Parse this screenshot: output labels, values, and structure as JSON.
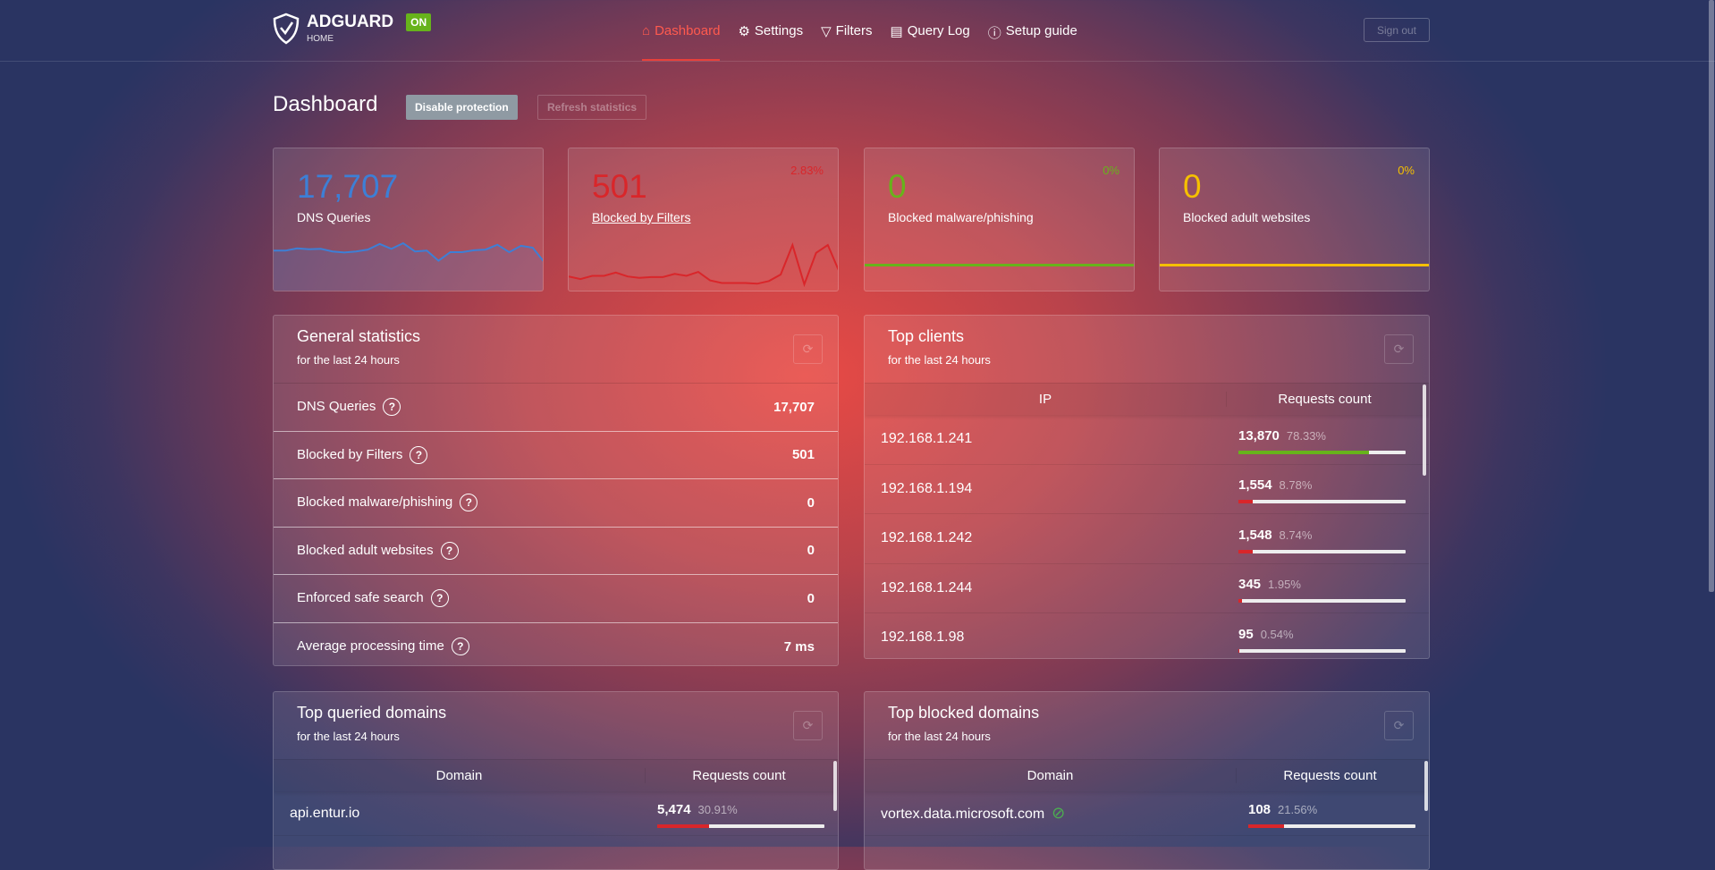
{
  "header": {
    "brand": "ADGUARD",
    "brand_sub": "HOME",
    "status": "ON",
    "nav": [
      {
        "label": "Dashboard",
        "icon": "home-icon",
        "active": true
      },
      {
        "label": "Settings",
        "icon": "gear-icon"
      },
      {
        "label": "Filters",
        "icon": "filter-icon"
      },
      {
        "label": "Query Log",
        "icon": "document-icon"
      },
      {
        "label": "Setup guide",
        "icon": "help-icon"
      }
    ],
    "sign_out": "Sign out"
  },
  "page": {
    "title": "Dashboard",
    "disable_protection": "Disable protection",
    "refresh_statistics": "Refresh statistics"
  },
  "cards": [
    {
      "value": "17,707",
      "label": "DNS Queries",
      "percent": "",
      "color": "#3d7fd6",
      "trend": [
        52,
        52,
        58,
        56,
        57,
        50,
        47,
        50,
        55,
        70,
        57,
        72,
        50,
        52,
        25,
        48,
        48,
        53,
        55,
        68,
        48,
        65,
        60,
        20
      ]
    },
    {
      "value": "501",
      "label": "Blocked by Filters",
      "percent": "2.83%",
      "color": "#d9262a",
      "trend": [
        12,
        8,
        13,
        13,
        18,
        12,
        10,
        11,
        11,
        16,
        13,
        19,
        6,
        2,
        2,
        2,
        1,
        5,
        15,
        60,
        0,
        48,
        60,
        18
      ]
    },
    {
      "value": "0",
      "label": "Blocked malware/phishing",
      "percent": "0%",
      "color": "#67b31b"
    },
    {
      "value": "0",
      "label": "Blocked adult websites",
      "percent": "0%",
      "color": "#f5c000"
    }
  ],
  "general": {
    "title": "General statistics",
    "subtitle": "for the last 24 hours",
    "rows": [
      {
        "label": "DNS Queries",
        "value": "17,707"
      },
      {
        "label": "Blocked by Filters",
        "value": "501"
      },
      {
        "label": "Blocked malware/phishing",
        "value": "0"
      },
      {
        "label": "Blocked adult websites",
        "value": "0"
      },
      {
        "label": "Enforced safe search",
        "value": "0"
      },
      {
        "label": "Average processing time",
        "value": "7 ms"
      }
    ]
  },
  "clients": {
    "title": "Top clients",
    "subtitle": "for the last 24 hours",
    "col_ip": "IP",
    "col_count": "Requests count",
    "rows": [
      {
        "ip": "192.168.1.241",
        "count": "13,870",
        "percent": "78.33%",
        "fill": 78.33,
        "color": "#67b31b"
      },
      {
        "ip": "192.168.1.194",
        "count": "1,554",
        "percent": "8.78%",
        "fill": 8.78,
        "color": "#d9262a"
      },
      {
        "ip": "192.168.1.242",
        "count": "1,548",
        "percent": "8.74%",
        "fill": 8.74,
        "color": "#d9262a"
      },
      {
        "ip": "192.168.1.244",
        "count": "345",
        "percent": "1.95%",
        "fill": 1.95,
        "color": "#d9262a"
      },
      {
        "ip": "192.168.1.98",
        "count": "95",
        "percent": "0.54%",
        "fill": 0.54,
        "color": "#d9262a"
      }
    ]
  },
  "queried": {
    "title": "Top queried domains",
    "subtitle": "for the last 24 hours",
    "col_domain": "Domain",
    "col_count": "Requests count",
    "rows": [
      {
        "domain": "api.entur.io",
        "count": "5,474",
        "percent": "30.91%",
        "fill": 30.91,
        "color": "#d9262a"
      }
    ]
  },
  "blocked": {
    "title": "Top blocked domains",
    "subtitle": "for the last 24 hours",
    "col_domain": "Domain",
    "col_count": "Requests count",
    "rows": [
      {
        "domain": "vortex.data.microsoft.com",
        "count": "108",
        "percent": "21.56%",
        "fill": 21.56,
        "color": "#d9262a",
        "icon": "tracker-icon"
      }
    ]
  }
}
